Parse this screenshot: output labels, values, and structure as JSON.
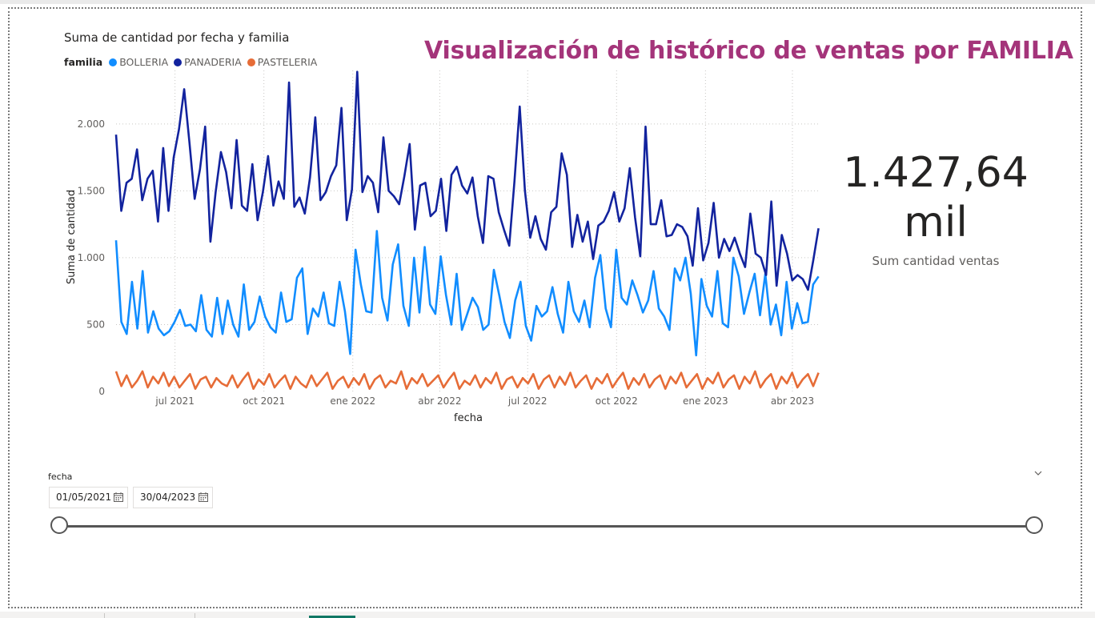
{
  "report_title": "Visualización de histórico de ventas por FAMILIA",
  "chart_data": {
    "type": "line",
    "title": "Suma de cantidad por fecha y familia",
    "xlabel": "fecha",
    "ylabel": "Suma de cantidad",
    "legend_title": "familia",
    "legend_position": "top-left",
    "grid": true,
    "x_range": [
      "2021-05-01",
      "2023-04-30"
    ],
    "ylim": [
      0,
      2400
    ],
    "y_ticks": [
      0,
      500,
      1000,
      1500,
      2000
    ],
    "y_tick_labels": [
      "0",
      "500",
      "1.000",
      "1.500",
      "2.000"
    ],
    "x_ticks": [
      "2021-07-01",
      "2021-10-01",
      "2022-01-01",
      "2022-04-01",
      "2022-07-01",
      "2022-10-01",
      "2023-01-01",
      "2023-04-01"
    ],
    "x_tick_labels": [
      "jul 2021",
      "oct 2021",
      "ene 2022",
      "abr 2022",
      "jul 2022",
      "oct 2022",
      "ene 2023",
      "abr 2023"
    ],
    "x_sample_step": "weekly",
    "series": [
      {
        "name": "BOLLERIA",
        "color": "#118dff",
        "values": [
          1130,
          520,
          430,
          820,
          470,
          900,
          440,
          600,
          470,
          420,
          450,
          520,
          610,
          490,
          500,
          450,
          720,
          460,
          410,
          700,
          430,
          680,
          500,
          410,
          800,
          460,
          520,
          710,
          560,
          480,
          440,
          740,
          520,
          540,
          850,
          920,
          430,
          620,
          560,
          740,
          510,
          490,
          820,
          600,
          280,
          1060,
          800,
          600,
          590,
          1200,
          700,
          530,
          950,
          1100,
          640,
          490,
          1000,
          590,
          1080,
          650,
          580,
          1010,
          720,
          500,
          880,
          460,
          580,
          700,
          630,
          460,
          500,
          910,
          720,
          520,
          400,
          680,
          820,
          490,
          380,
          640,
          560,
          600,
          780,
          580,
          440,
          820,
          600,
          520,
          680,
          480,
          850,
          1020,
          620,
          480,
          1060,
          700,
          650,
          830,
          720,
          590,
          680,
          900,
          620,
          560,
          460,
          920,
          830,
          1000,
          730,
          270,
          840,
          640,
          560,
          900,
          510,
          480,
          1000,
          860,
          580,
          740,
          880,
          570,
          880,
          500,
          650,
          420,
          820,
          470,
          660,
          510,
          520,
          800,
          860
        ]
      },
      {
        "name": "PANADERIA",
        "color": "#12239e",
        "values": [
          1920,
          1350,
          1560,
          1590,
          1810,
          1430,
          1590,
          1650,
          1270,
          1820,
          1350,
          1750,
          1960,
          2260,
          1860,
          1440,
          1660,
          1980,
          1120,
          1490,
          1790,
          1640,
          1370,
          1880,
          1390,
          1350,
          1700,
          1280,
          1490,
          1760,
          1390,
          1570,
          1440,
          2310,
          1380,
          1450,
          1330,
          1600,
          2050,
          1430,
          1490,
          1610,
          1690,
          2120,
          1280,
          1510,
          2390,
          1490,
          1610,
          1560,
          1340,
          1900,
          1500,
          1460,
          1400,
          1610,
          1850,
          1210,
          1540,
          1560,
          1310,
          1350,
          1590,
          1200,
          1620,
          1680,
          1540,
          1480,
          1600,
          1310,
          1110,
          1610,
          1590,
          1340,
          1210,
          1090,
          1570,
          2130,
          1500,
          1150,
          1310,
          1140,
          1060,
          1340,
          1380,
          1780,
          1620,
          1080,
          1320,
          1120,
          1270,
          990,
          1240,
          1270,
          1350,
          1490,
          1270,
          1370,
          1670,
          1300,
          1010,
          1980,
          1250,
          1250,
          1430,
          1160,
          1170,
          1250,
          1230,
          1160,
          940,
          1370,
          980,
          1110,
          1410,
          1000,
          1140,
          1050,
          1150,
          1030,
          930,
          1330,
          1030,
          1000,
          870,
          1420,
          790,
          1170,
          1030,
          830,
          870,
          840,
          760,
          980,
          1220
        ]
      },
      {
        "name": "PASTELERIA",
        "color": "#e66c37",
        "values": [
          150,
          40,
          120,
          30,
          80,
          150,
          30,
          110,
          60,
          140,
          40,
          110,
          30,
          80,
          130,
          20,
          90,
          110,
          30,
          100,
          60,
          40,
          120,
          30,
          90,
          140,
          20,
          90,
          50,
          130,
          30,
          80,
          120,
          20,
          110,
          60,
          30,
          120,
          40,
          90,
          140,
          20,
          80,
          110,
          30,
          100,
          50,
          130,
          20,
          90,
          120,
          30,
          80,
          60,
          150,
          20,
          100,
          60,
          130,
          40,
          80,
          120,
          30,
          90,
          140,
          20,
          80,
          50,
          120,
          30,
          100,
          60,
          140,
          20,
          90,
          110,
          30,
          100,
          60,
          130,
          20,
          90,
          120,
          30,
          110,
          50,
          140,
          30,
          80,
          120,
          20,
          100,
          60,
          130,
          30,
          90,
          140,
          20,
          100,
          50,
          130,
          30,
          90,
          120,
          20,
          110,
          60,
          140,
          30,
          80,
          130,
          20,
          100,
          60,
          140,
          30,
          90,
          120,
          20,
          110,
          60,
          150,
          30,
          90,
          130,
          20,
          110,
          60,
          140,
          30,
          90,
          130,
          40,
          140
        ]
      }
    ]
  },
  "kpi": {
    "value_line1": "1.427,64",
    "value_line2": "mil",
    "label": "Sum cantidad ventas"
  },
  "slicer": {
    "title": "fecha",
    "start_date": "01/05/2021",
    "end_date": "30/04/2023",
    "range_start_fraction": 0,
    "range_end_fraction": 1
  },
  "icons": {
    "calendar": "calendar-icon",
    "expand": "chevron-down-icon"
  }
}
